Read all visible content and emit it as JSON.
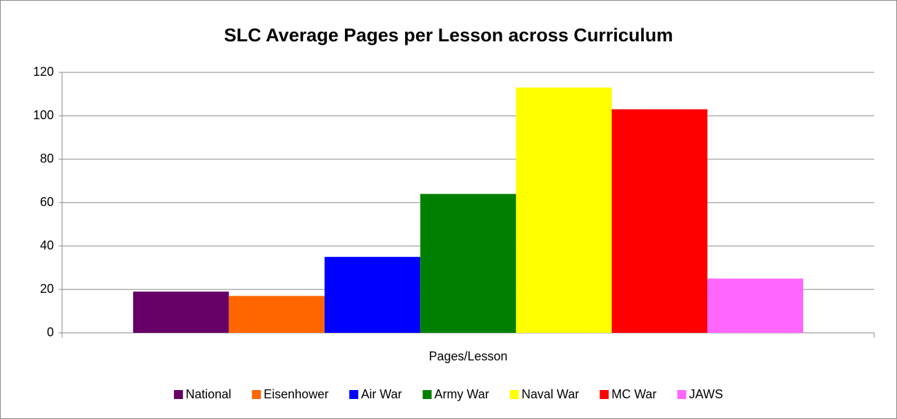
{
  "chart_data": {
    "type": "bar",
    "title": "SLC Average Pages per Lesson across Curriculum",
    "categories": [
      "Pages/Lesson"
    ],
    "series": [
      {
        "name": "National",
        "color": "#660066",
        "values": [
          19
        ]
      },
      {
        "name": "Eisenhower",
        "color": "#ff6600",
        "values": [
          17
        ]
      },
      {
        "name": "Air War",
        "color": "#0000ff",
        "values": [
          35
        ]
      },
      {
        "name": "Army War",
        "color": "#008000",
        "values": [
          64
        ]
      },
      {
        "name": "Naval War",
        "color": "#ffff00",
        "values": [
          113
        ]
      },
      {
        "name": "MC War",
        "color": "#ff0000",
        "values": [
          103
        ]
      },
      {
        "name": "JAWS",
        "color": "#ff66ff",
        "values": [
          25
        ]
      }
    ],
    "ylim": [
      0,
      120
    ],
    "yticks": [
      0,
      20,
      40,
      60,
      80,
      100,
      120
    ],
    "grid": true,
    "legend": "bottom"
  }
}
